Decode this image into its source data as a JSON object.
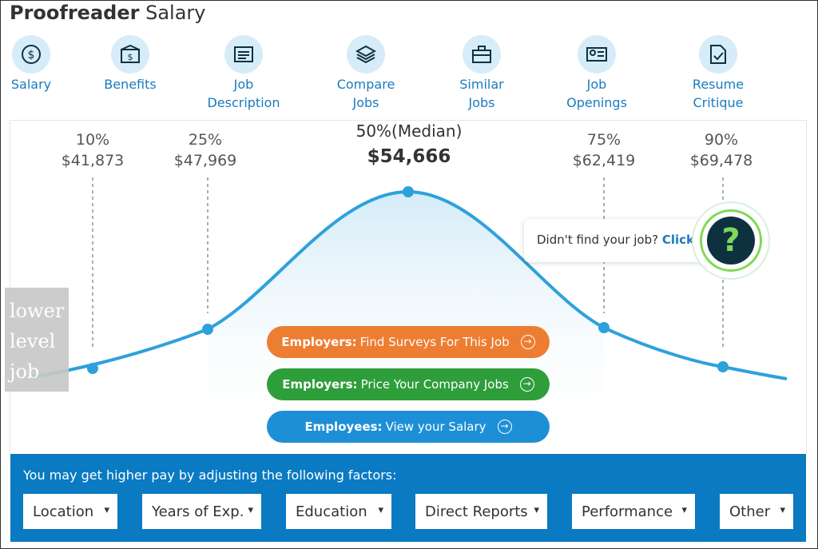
{
  "title": {
    "bold": "Proofreader",
    "light": "Salary"
  },
  "nav": [
    {
      "label": "Salary",
      "icon": "dollar-icon"
    },
    {
      "label": "Benefits",
      "icon": "benefits-icon"
    },
    {
      "label": "Job\nDescription",
      "icon": "document-icon"
    },
    {
      "label": "Compare\nJobs",
      "icon": "layers-icon"
    },
    {
      "label": "Similar\nJobs",
      "icon": "briefcase-icon"
    },
    {
      "label": "Job\nOpenings",
      "icon": "id-card-icon"
    },
    {
      "label": "Resume\nCritique",
      "icon": "resume-check-icon"
    }
  ],
  "percentiles": [
    {
      "pct": "10%",
      "value": "$41,873"
    },
    {
      "pct": "25%",
      "value": "$47,969"
    },
    {
      "pct": "50%(Median)",
      "value": "$54,666"
    },
    {
      "pct": "75%",
      "value": "$62,419"
    },
    {
      "pct": "90%",
      "value": "$69,478"
    }
  ],
  "help": {
    "text": "Didn't find your job?",
    "link": "Click",
    "icon_text": "?"
  },
  "lower_tab": "lower\nlevel\njob",
  "buttons": {
    "employers_surveys": {
      "bold": "Employers:",
      "text": "Find Surveys For This Job"
    },
    "employers_price": {
      "bold": "Employers:",
      "text": "Price Your Company Jobs"
    },
    "employees_view": {
      "bold": "Employees:",
      "text": "View your Salary"
    }
  },
  "factors": {
    "title": "You may get higher pay by adjusting the following factors:",
    "options": [
      "Location",
      "Years of Exp.",
      "Education",
      "Direct Reports",
      "Performance",
      "Other"
    ]
  },
  "colors": {
    "accent": "#1a7bbf",
    "curve": "#2ea1dc",
    "orange": "#ed7d31",
    "green": "#2e9e3b",
    "blue": "#1d8fd6",
    "factors_bg": "#0a7ac2"
  }
}
